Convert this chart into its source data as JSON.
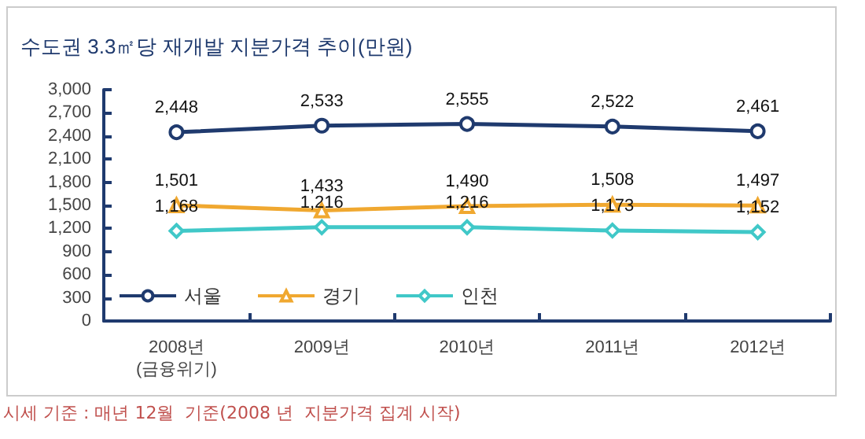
{
  "chart_data": {
    "type": "line",
    "title": "수도권 3.3㎡당 재개발 지분가격 추이(만원)",
    "categories": [
      "2008년\n(금융위기)",
      "2009년",
      "2010년",
      "2011년",
      "2012년"
    ],
    "series": [
      {
        "name": "서울",
        "color": "#1f3a6e",
        "marker": "circle",
        "values": [
          2448,
          2533,
          2555,
          2522,
          2461
        ],
        "value_labels": [
          "2,448",
          "2,533",
          "2,555",
          "2,522",
          "2,461"
        ]
      },
      {
        "name": "경기",
        "color": "#f0a830",
        "marker": "triangle",
        "values": [
          1501,
          1433,
          1490,
          1508,
          1497
        ],
        "value_labels": [
          "1,501",
          "1,433",
          "1,490",
          "1,508",
          "1,497"
        ]
      },
      {
        "name": "인천",
        "color": "#40c8c8",
        "marker": "diamond",
        "values": [
          1168,
          1216,
          1216,
          1173,
          1152
        ],
        "value_labels": [
          "1,168",
          "1,216",
          "1,216",
          "1,173",
          "1,152"
        ]
      }
    ],
    "ylim": [
      0,
      3000
    ],
    "yticks": [
      0,
      300,
      600,
      900,
      {
        "value": 1200,
        "label": "1,200"
      },
      {
        "value": 1500,
        "label": "1,500"
      },
      {
        "value": 1800,
        "label": "1,800"
      },
      {
        "value": 2100,
        "label": "2,100"
      },
      {
        "value": 2400,
        "label": "2,400"
      },
      {
        "value": 2700,
        "label": "2,700"
      },
      {
        "value": 3000,
        "label": "3,000"
      }
    ],
    "grid": false,
    "legend": "bottom left",
    "annotations": [
      "시세 기준 : 매년 12월  기준(2008 년  지분가격 집계 시작)"
    ]
  }
}
